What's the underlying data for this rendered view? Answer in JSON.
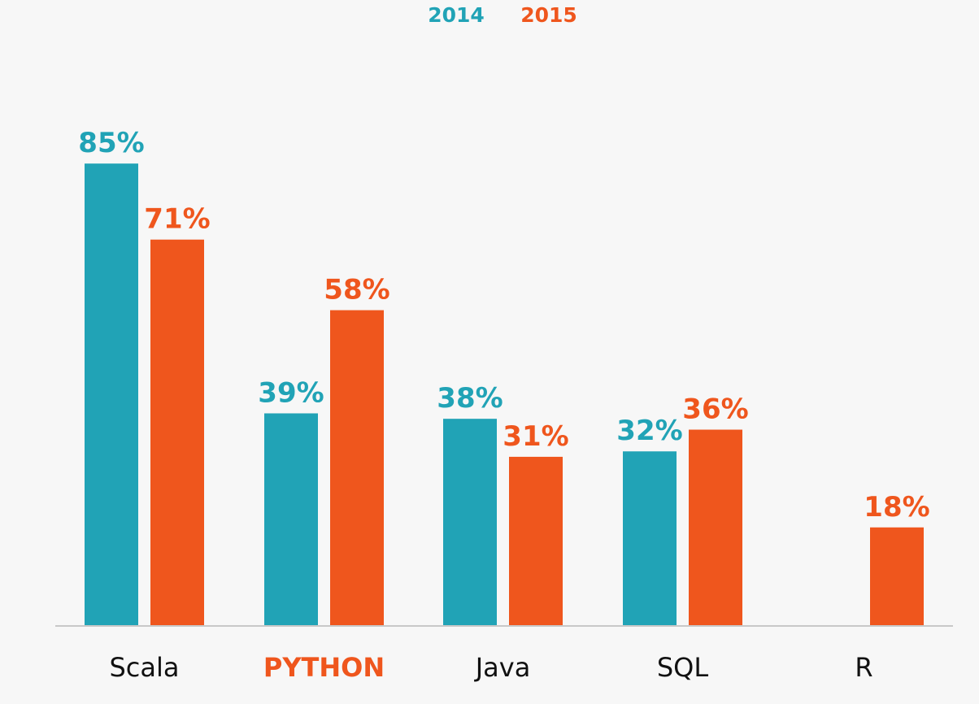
{
  "colors": {
    "background": "#f7f7f7",
    "series_2014": "#21a3b6",
    "series_2015": "#ef561d",
    "axis_line": "#c8c8c8",
    "category_text": "#111111",
    "highlight_text": "#ef561d"
  },
  "legend": {
    "items": [
      {
        "label": "2014",
        "color": "#21a3b6"
      },
      {
        "label": "2015",
        "color": "#ef561d"
      }
    ]
  },
  "chart_data": {
    "type": "bar",
    "title": "",
    "xlabel": "",
    "ylabel": "",
    "ylim": [
      0,
      100
    ],
    "grid": false,
    "legend_position": "top-center",
    "categories": [
      "Scala",
      "PYTHON",
      "Java",
      "SQL",
      "R"
    ],
    "highlighted_category": "PYTHON",
    "series": [
      {
        "name": "2014",
        "color": "#21a3b6",
        "values": [
          85,
          39,
          38,
          32,
          null
        ],
        "labels": [
          "85%",
          "39%",
          "38%",
          "32%",
          ""
        ]
      },
      {
        "name": "2015",
        "color": "#ef561d",
        "values": [
          71,
          58,
          31,
          36,
          18
        ],
        "labels": [
          "71%",
          "58%",
          "31%",
          "36%",
          "18%"
        ]
      }
    ]
  }
}
